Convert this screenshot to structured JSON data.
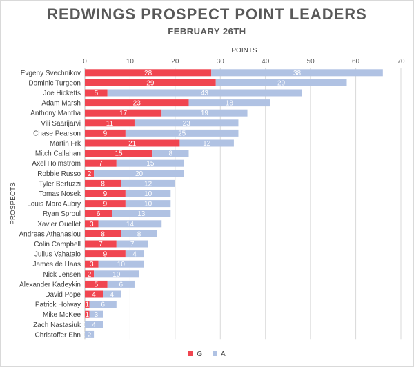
{
  "chart_data": {
    "type": "bar",
    "orientation": "horizontal",
    "stacked": true,
    "title": "REDWINGS PROSPECT POINT LEADERS",
    "subtitle": "FEBRUARY 26TH",
    "xlabel": "POINTS",
    "ylabel": "PROSPECTS",
    "xlim": [
      0,
      70
    ],
    "xticks": [
      0,
      10,
      20,
      30,
      40,
      50,
      60,
      70
    ],
    "grid": true,
    "legend_position": "bottom",
    "categories": [
      "Evgeny Svechnikov",
      "Dominic Turgeon",
      "Joe Hicketts",
      "Adam Marsh",
      "Anthony Mantha",
      "Vili Saarijärvi",
      "Chase Pearson",
      "Martin Frk",
      "Mitch Callahan",
      "Axel Holmström",
      "Robbie Russo",
      "Tyler Bertuzzi",
      "Tomas Nosek",
      "Louis-Marc Aubry",
      "Ryan Sproul",
      "Xavier Ouellet",
      "Andreas Athanasiou",
      "Colin Campbell",
      "Julius Vahatalo",
      "James de Haas",
      "Nick Jensen",
      "Alexander Kadeykin",
      "David Pope",
      "Patrick Holway",
      "Mike McKee",
      "Zach Nastasiuk",
      "Christoffer Ehn"
    ],
    "series": [
      {
        "name": "G",
        "color": "#f04550",
        "values": [
          28,
          29,
          5,
          23,
          17,
          11,
          9,
          21,
          15,
          7,
          2,
          8,
          9,
          9,
          6,
          3,
          8,
          7,
          9,
          3,
          2,
          5,
          4,
          1,
          1,
          0,
          0
        ]
      },
      {
        "name": "A",
        "color": "#b0c2e3",
        "values": [
          38,
          29,
          43,
          18,
          19,
          23,
          25,
          12,
          8,
          15,
          20,
          12,
          10,
          10,
          13,
          14,
          8,
          7,
          4,
          10,
          10,
          6,
          4,
          6,
          3,
          4,
          2
        ]
      }
    ],
    "data_label_color": "#ffffff"
  }
}
